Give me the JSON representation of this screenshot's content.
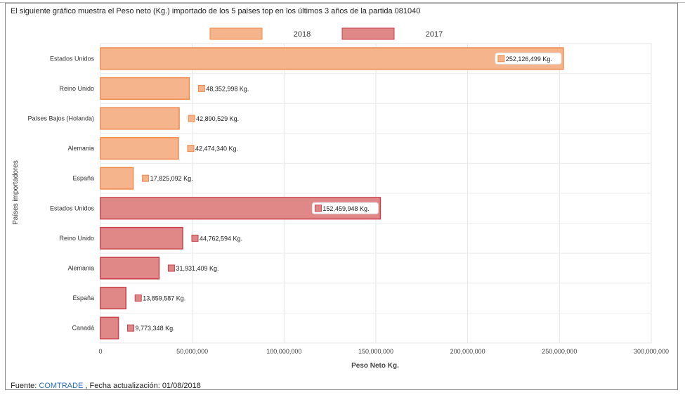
{
  "description": "El siguiente gráfico muestra el Peso neto (Kg.) importado de los 5 paises top en los últimos 3 años de la partida 081040",
  "footer": {
    "prefix": "Fuente: ",
    "source_link": "COMTRADE",
    "suffix": " , Fecha actualización: 01/08/2018"
  },
  "colors": {
    "s2018_fill": "#f5b48c",
    "s2018_stroke": "#ef8a4e",
    "s2017_fill": "#e08888",
    "s2017_stroke": "#c9404a"
  },
  "chart_data": {
    "type": "bar",
    "orientation": "horizontal",
    "xlabel": "Peso Neto Kg.",
    "ylabel": "Países importadores",
    "xlim": [
      0,
      300000000
    ],
    "xticks": [
      0,
      50000000,
      100000000,
      150000000,
      200000000,
      250000000,
      300000000
    ],
    "xtick_labels": [
      "0",
      "50,000,000",
      "100,000,000",
      "150,000,000",
      "200,000,000",
      "250,000,000",
      "300,000,000"
    ],
    "grid": true,
    "legend_position": "top-center",
    "series": [
      {
        "name": "2018",
        "categories": [
          "Estados Unidos",
          "Reino Unido",
          "Países Bajos (Holanda)",
          "Alemania",
          "España"
        ],
        "values": [
          252126499,
          48352998,
          42890529,
          42474340,
          17825092
        ],
        "labels": [
          "252,126,499 Kg.",
          "48,352,998 Kg.",
          "42,890,529 Kg.",
          "42,474,340 Kg.",
          "17,825,092 Kg."
        ]
      },
      {
        "name": "2017",
        "categories": [
          "Estados Unidos",
          "Reino Unido",
          "Alemania",
          "España",
          "Canadá"
        ],
        "values": [
          152459948,
          44762594,
          31931409,
          13859587,
          9773348
        ],
        "labels": [
          "152,459,948 Kg.",
          "44,762,594 Kg.",
          "31,931,409 Kg.",
          "13,859,587 Kg.",
          "9,773,348 Kg."
        ]
      }
    ]
  }
}
